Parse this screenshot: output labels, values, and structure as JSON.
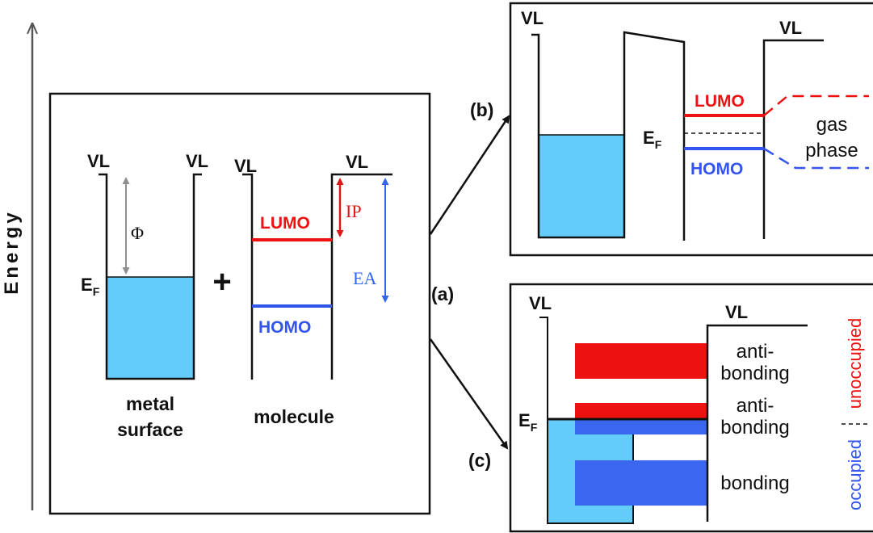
{
  "axis": {
    "label": "Energy"
  },
  "panel_a": {
    "tag": "(a)",
    "vl_metal_left": "VL",
    "vl_metal_right": "VL",
    "vl_mol_left": "VL",
    "vl_mol_right": "VL",
    "ef": "E",
    "ef_sub": "F",
    "phi": "Φ",
    "plus": "+",
    "lumo": "LUMO",
    "homo": "HOMO",
    "ip": "IP",
    "ea": "EA",
    "metal_line1": "metal",
    "metal_line2": "surface",
    "molecule": "molecule"
  },
  "panel_b": {
    "tag": "(b)",
    "vl_left": "VL",
    "vl_right": "VL",
    "ef": "E",
    "ef_sub": "F",
    "lumo": "LUMO",
    "homo": "HOMO",
    "gas_line1": "gas",
    "gas_line2": "phase"
  },
  "panel_c": {
    "tag": "(c)",
    "vl_left": "VL",
    "vl_right": "VL",
    "ef": "E",
    "ef_sub": "F",
    "anti1_line1": "anti-",
    "anti1_line2": "bonding",
    "anti2_line1": "anti-",
    "anti2_line2": "bonding",
    "bonding": "bonding",
    "unoccupied": "unoccupied",
    "occupied": "occupied"
  },
  "colors": {
    "metal_fill": "#64ccfb",
    "lumo": "#ee1111",
    "homo": "#3355ee",
    "phi_arrow": "#909090",
    "ip_arrow": "#e01515",
    "ea_arrow": "#3366ee",
    "bond_blue": "#3a66f0",
    "bond_red": "#ee1111"
  }
}
